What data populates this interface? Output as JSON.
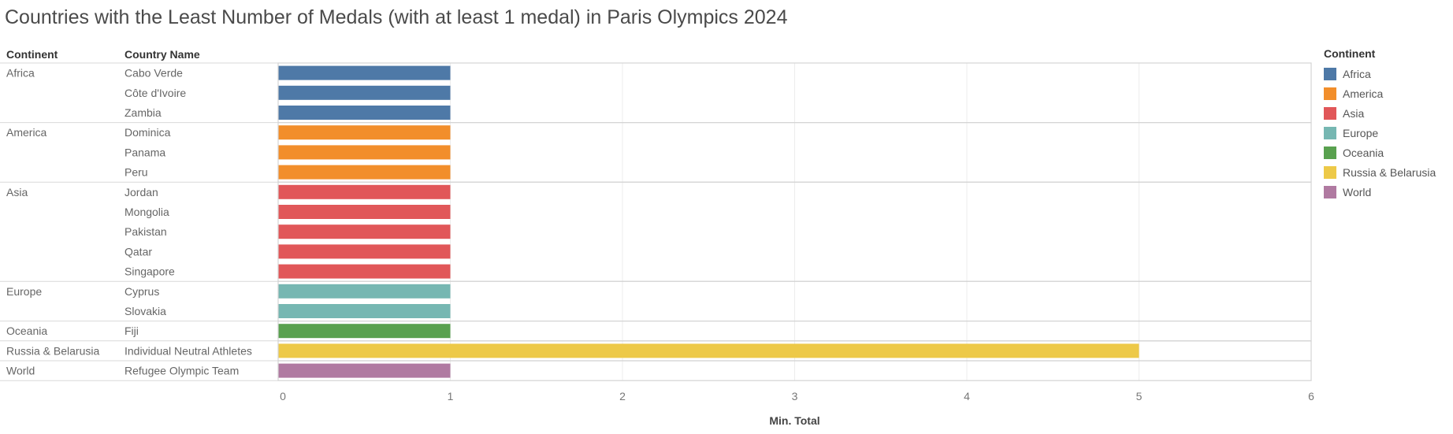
{
  "title": "Countries with the Least Number of Medals (with at least 1 medal) in Paris Olympics 2024",
  "headers": {
    "continent": "Continent",
    "country": "Country Name"
  },
  "legend": {
    "title": "Continent",
    "items": [
      {
        "label": "Africa",
        "color": "#4e79a7"
      },
      {
        "label": "America",
        "color": "#f28e2b"
      },
      {
        "label": "Asia",
        "color": "#e15759"
      },
      {
        "label": "Europe",
        "color": "#76b7b2"
      },
      {
        "label": "Oceania",
        "color": "#59a14f"
      },
      {
        "label": "Russia & Belarusia",
        "color": "#edc948"
      },
      {
        "label": "World",
        "color": "#b07aa1"
      }
    ]
  },
  "chart_data": {
    "type": "bar",
    "orientation": "horizontal",
    "title": "Countries with the Least Number of Medals (with at least 1 medal) in Paris Olympics 2024",
    "xlabel": "Min. Total",
    "xlim": [
      0,
      6
    ],
    "xticks": [
      0,
      1,
      2,
      3,
      4,
      5,
      6
    ],
    "grid": true,
    "legend_placement": "right",
    "groups": [
      {
        "continent": "Africa",
        "countries": [
          {
            "name": "Cabo Verde",
            "value": 1
          },
          {
            "name": "Côte d'Ivoire",
            "value": 1
          },
          {
            "name": "Zambia",
            "value": 1
          }
        ]
      },
      {
        "continent": "America",
        "countries": [
          {
            "name": "Dominica",
            "value": 1
          },
          {
            "name": "Panama",
            "value": 1
          },
          {
            "name": "Peru",
            "value": 1
          }
        ]
      },
      {
        "continent": "Asia",
        "countries": [
          {
            "name": "Jordan",
            "value": 1
          },
          {
            "name": "Mongolia",
            "value": 1
          },
          {
            "name": "Pakistan",
            "value": 1
          },
          {
            "name": "Qatar",
            "value": 1
          },
          {
            "name": "Singapore",
            "value": 1
          }
        ]
      },
      {
        "continent": "Europe",
        "countries": [
          {
            "name": "Cyprus",
            "value": 1
          },
          {
            "name": "Slovakia",
            "value": 1
          }
        ]
      },
      {
        "continent": "Oceania",
        "countries": [
          {
            "name": "Fiji",
            "value": 1
          }
        ]
      },
      {
        "continent": "Russia & Belarusia",
        "countries": [
          {
            "name": "Individual Neutral Athletes",
            "value": 5
          }
        ]
      },
      {
        "continent": "World",
        "countries": [
          {
            "name": "Refugee Olympic Team",
            "value": 1
          }
        ]
      }
    ]
  }
}
